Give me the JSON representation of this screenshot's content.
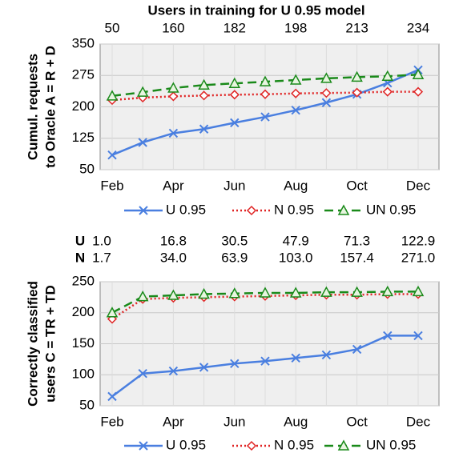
{
  "chart_data": [
    {
      "type": "line",
      "top_axis_title": "Users in training for U 0.95 model",
      "top_axis_labels": [
        50,
        160,
        182,
        198,
        213,
        234
      ],
      "y_label": [
        "Cumul. requests",
        "to Oracle A = R + D"
      ],
      "categories": [
        "Feb",
        null,
        "Apr",
        null,
        "Jun",
        null,
        "Aug",
        null,
        "Oct",
        null,
        "Dec"
      ],
      "ylim": [
        50,
        350
      ],
      "yticks": [
        50,
        125,
        200,
        275,
        350
      ],
      "grid": true,
      "series": [
        {
          "name": "U 0.95",
          "color": "#4a7fe0",
          "style": "solid",
          "marker": "x",
          "values": [
            85,
            115,
            137,
            147,
            162,
            176,
            192,
            210,
            230,
            257,
            288
          ]
        },
        {
          "name": "N 0.95",
          "color": "#e02424",
          "style": "dotted",
          "marker": "diamond",
          "values": [
            216,
            222,
            225,
            227,
            229,
            230,
            232,
            233,
            234,
            236,
            236
          ]
        },
        {
          "name": "UN 0.95",
          "color": "#1a8a1a",
          "style": "dashed",
          "marker": "triangle",
          "values": [
            226,
            235,
            245,
            252,
            256,
            260,
            264,
            268,
            271,
            273,
            277
          ]
        }
      ]
    },
    {
      "type": "line",
      "annotation_rows": [
        {
          "label": "U",
          "values": [
            "1.0",
            "16.8",
            "30.5",
            "47.9",
            "71.3",
            "122.9"
          ]
        },
        {
          "label": "N",
          "values": [
            "1.7",
            "34.0",
            "63.9",
            "103.0",
            "157.4",
            "271.0"
          ]
        }
      ],
      "y_label": [
        "Correctly classified",
        "users C = TR + TD"
      ],
      "categories": [
        "Feb",
        null,
        "Apr",
        null,
        "Jun",
        null,
        "Aug",
        null,
        "Oct",
        null,
        "Dec"
      ],
      "ylim": [
        50,
        250
      ],
      "yticks": [
        50,
        100,
        150,
        200,
        250
      ],
      "grid": true,
      "series": [
        {
          "name": "U 0.95",
          "color": "#4a7fe0",
          "style": "solid",
          "marker": "x",
          "values": [
            65,
            102,
            106,
            112,
            118,
            122,
            127,
            132,
            141,
            163,
            163
          ]
        },
        {
          "name": "N 0.95",
          "color": "#e02424",
          "style": "dotted",
          "marker": "diamond",
          "values": [
            190,
            222,
            224,
            225,
            226,
            227,
            228,
            229,
            229,
            230,
            230
          ]
        },
        {
          "name": "UN 0.95",
          "color": "#1a8a1a",
          "style": "dashed",
          "marker": "triangle",
          "values": [
            200,
            226,
            228,
            230,
            231,
            232,
            232,
            233,
            233,
            234,
            234
          ]
        }
      ]
    }
  ]
}
